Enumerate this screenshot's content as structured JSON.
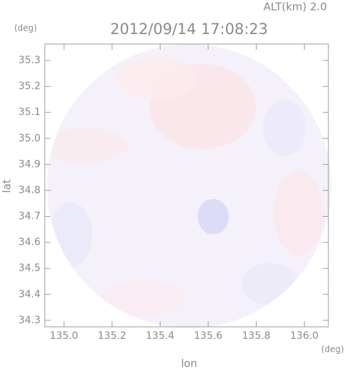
{
  "chart_data": {
    "type": "radar-map",
    "altitude_label": "ALT(km) 2.0",
    "title": "2012/09/14 17:08:23",
    "x_label": "lon",
    "y_label": "lat",
    "x_unit": "(deg)",
    "y_unit": "(deg)",
    "xlim": [
      134.92,
      136.1
    ],
    "ylim": [
      34.275,
      35.363
    ],
    "xticks": [
      {
        "value": 135,
        "label": "135.0"
      },
      135.2,
      135.4,
      135.6,
      135.8,
      {
        "value": 136,
        "label": "136.0"
      }
    ],
    "yticks": [
      34.3,
      34.4,
      34.5,
      34.6,
      34.7,
      34.8,
      34.9,
      {
        "value": 35,
        "label": "35.0"
      },
      35.1,
      35.2,
      35.3
    ]
  }
}
